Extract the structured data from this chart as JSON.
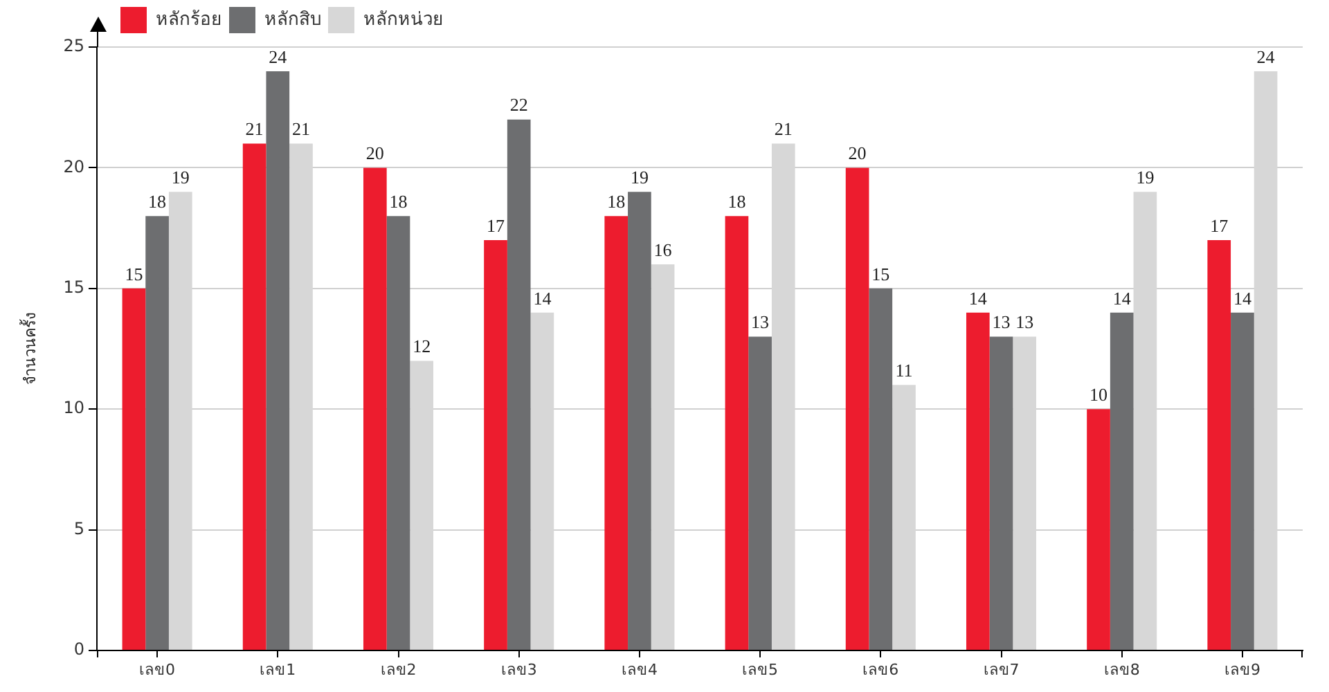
{
  "chart_data": {
    "type": "bar",
    "categories": [
      "เลข0",
      "เลข1",
      "เลข2",
      "เลข3",
      "เลข4",
      "เลข5",
      "เลข6",
      "เลข7",
      "เลข8",
      "เลข9"
    ],
    "series": [
      {
        "name": "หลักร้อย",
        "color": "#ed1c2e",
        "values": [
          15,
          21,
          20,
          17,
          18,
          18,
          20,
          14,
          10,
          17
        ]
      },
      {
        "name": "หลักสิบ",
        "color": "#6d6e70",
        "values": [
          18,
          24,
          18,
          22,
          19,
          13,
          15,
          13,
          14,
          14
        ]
      },
      {
        "name": "หลักหน่วย",
        "color": "#d7d7d7",
        "values": [
          19,
          21,
          12,
          14,
          16,
          21,
          11,
          13,
          19,
          24
        ]
      }
    ],
    "ylabel": "จำนวนครั้ง",
    "ylim": [
      0,
      25
    ],
    "yticks": [
      0,
      5,
      10,
      15,
      20,
      25
    ],
    "grid": "y",
    "legend": "top left",
    "data_labels": true
  }
}
